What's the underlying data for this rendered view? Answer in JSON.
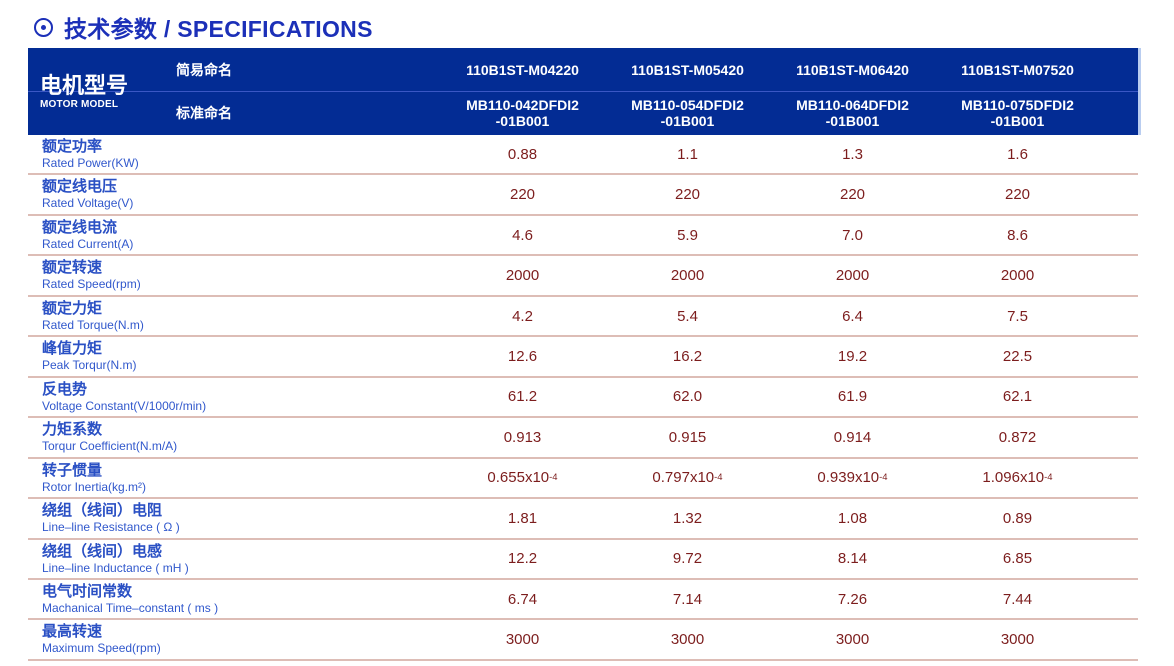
{
  "title": {
    "icon": "circled-dot-bullet",
    "text": "技术参数 / SPECIFICATIONS"
  },
  "colors": {
    "title_blue": "#1c30b8",
    "header_bg": "#032c94",
    "header_divider": "#3a57c4",
    "label_blue": "#2a50c4",
    "value_maroon": "#7c1d1d",
    "row_divider_pink": "#ddbdb6"
  },
  "table": {
    "header": {
      "model_label_zh": "电机型号",
      "model_label_en": "MOTOR MODEL",
      "simple_name_label": "简易命名",
      "standard_name_label": "标准命名",
      "models": [
        {
          "simple": "110B1ST-M04220",
          "standard_line1": "MB110-042DFDI2",
          "standard_line2": "-01B001"
        },
        {
          "simple": "110B1ST-M05420",
          "standard_line1": "MB110-054DFDI2",
          "standard_line2": "-01B001"
        },
        {
          "simple": "110B1ST-M06420",
          "standard_line1": "MB110-064DFDI2",
          "standard_line2": "-01B001"
        },
        {
          "simple": "110B1ST-M07520",
          "standard_line1": "MB110-075DFDI2",
          "standard_line2": "-01B001"
        }
      ]
    },
    "rows": [
      {
        "zh": "额定功率",
        "en": "Rated Power(KW)",
        "values": [
          "0.88",
          "1.1",
          "1.3",
          "1.6"
        ]
      },
      {
        "zh": "额定线电压",
        "en": "Rated Voltage(V)",
        "values": [
          "220",
          "220",
          "220",
          "220"
        ]
      },
      {
        "zh": "额定线电流",
        "en": "Rated Current(A)",
        "values": [
          "4.6",
          "5.9",
          "7.0",
          "8.6"
        ]
      },
      {
        "zh": "额定转速",
        "en": "Rated Speed(rpm)",
        "values": [
          "2000",
          "2000",
          "2000",
          "2000"
        ]
      },
      {
        "zh": "额定力矩",
        "en": "Rated Torque(N.m)",
        "values": [
          "4.2",
          "5.4",
          "6.4",
          "7.5"
        ]
      },
      {
        "zh": "峰值力矩",
        "en": "Peak Torqur(N.m)",
        "values": [
          "12.6",
          "16.2",
          "19.2",
          "22.5"
        ]
      },
      {
        "zh": "反电势",
        "en": "Voltage Constant(V/1000r/min)",
        "values": [
          "61.2",
          "62.0",
          "61.9",
          "62.1"
        ]
      },
      {
        "zh": "力矩系数",
        "en": "Torqur Coefficient(N.m/A)",
        "values": [
          "0.913",
          "0.915",
          "0.914",
          "0.872"
        ]
      },
      {
        "zh": "转子惯量",
        "en": "Rotor Inertia(kg.m²)",
        "values": [
          "0.655x10",
          "0.797x10",
          "0.939x10",
          "1.096x10"
        ],
        "exp": "-4"
      },
      {
        "zh": "绕组（线间）电阻",
        "en": "Line–line Resistance ( Ω )",
        "values": [
          "1.81",
          "1.32",
          "1.08",
          "0.89"
        ]
      },
      {
        "zh": "绕组（线间）电感",
        "en": "Line–line Inductance ( mH )",
        "values": [
          "12.2",
          "9.72",
          "8.14",
          "6.85"
        ]
      },
      {
        "zh": "电气时间常数",
        "en": "Machanical Time–constant ( ms )",
        "values": [
          "6.74",
          "7.14",
          "7.26",
          "7.44"
        ]
      },
      {
        "zh": "最高转速",
        "en": "Maximum Speed(rpm)",
        "values": [
          "3000",
          "3000",
          "3000",
          "3000"
        ]
      }
    ]
  }
}
